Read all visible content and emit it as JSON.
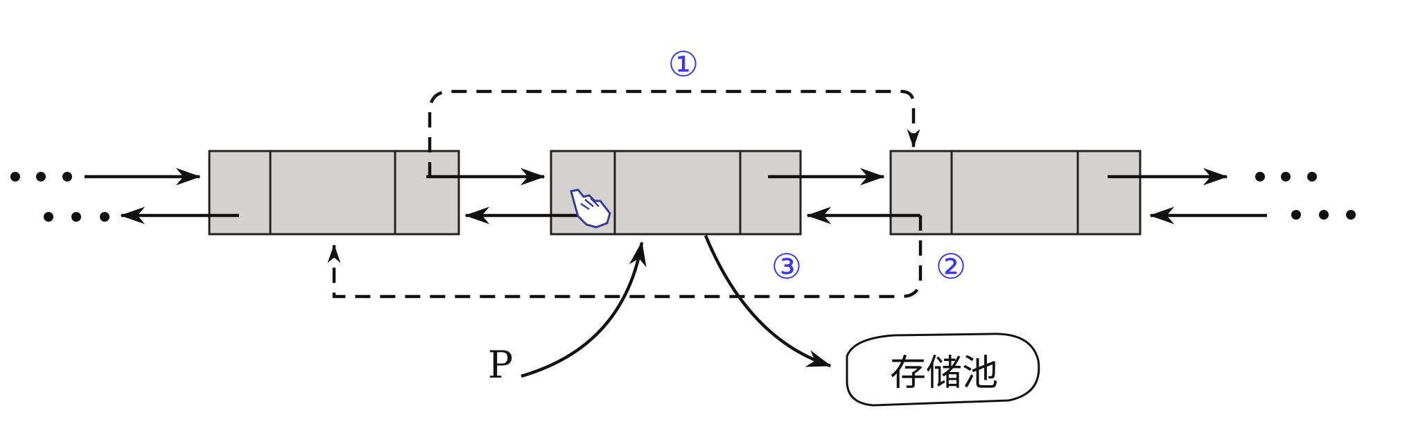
{
  "step_labels": [
    "①",
    "②",
    "③"
  ],
  "pointer_label": "P",
  "pool_label": "存储池",
  "colors": {
    "node_fill": "#d4d2d0",
    "step_label": "#3a3ae0",
    "line": "#111111"
  },
  "icons": [
    "pointing-hand-cursor-icon"
  ]
}
